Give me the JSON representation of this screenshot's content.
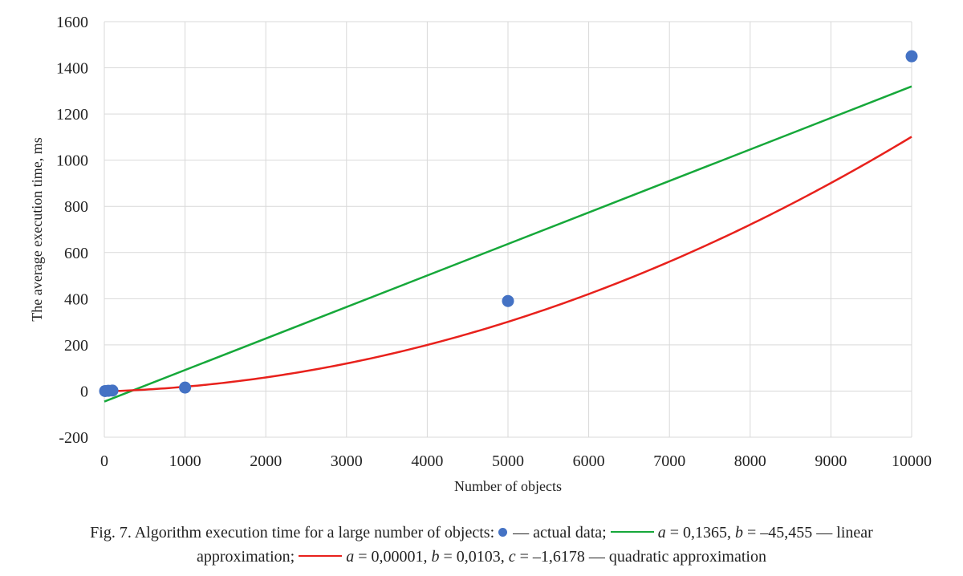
{
  "chart_data": {
    "type": "scatter",
    "xlabel": "Number of objects",
    "ylabel": "The average execution time, ms",
    "xlim": [
      0,
      10000
    ],
    "ylim": [
      -200,
      1600
    ],
    "x_ticks": [
      0,
      1000,
      2000,
      3000,
      4000,
      5000,
      6000,
      7000,
      8000,
      9000,
      10000
    ],
    "y_ticks": [
      -200,
      0,
      200,
      400,
      600,
      800,
      1000,
      1200,
      1400,
      1600
    ],
    "grid": true,
    "series": [
      {
        "kind": "points",
        "color": "#4472C4",
        "points": [
          {
            "x": 10,
            "y": 0
          },
          {
            "x": 50,
            "y": 1
          },
          {
            "x": 100,
            "y": 2
          },
          {
            "x": 1000,
            "y": 15
          },
          {
            "x": 5000,
            "y": 390
          },
          {
            "x": 10000,
            "y": 1450
          }
        ]
      },
      {
        "kind": "linear-fit",
        "color": "#16A83A",
        "a": 0.1365,
        "b": -45.455,
        "x_range": [
          0,
          10000
        ]
      },
      {
        "kind": "quadratic-fit",
        "color": "#E8211C",
        "a": 1e-05,
        "b": 0.0103,
        "c": -1.6178,
        "x_range": [
          0,
          10000
        ]
      }
    ]
  },
  "caption": {
    "lead": "Fig. 7. Algorithm execution time for a large number of objects:",
    "actual": "— actual data;",
    "linear_params": "= 0,1365,",
    "linear_b": "= –45,455 — linear approximation;",
    "quad_a": "= 0,00001,",
    "quad_b": "= 0,0103,",
    "quad_c": "= –1,6178 — quadratic approximation",
    "var_a": "a",
    "var_b": "b",
    "var_c": "c"
  }
}
